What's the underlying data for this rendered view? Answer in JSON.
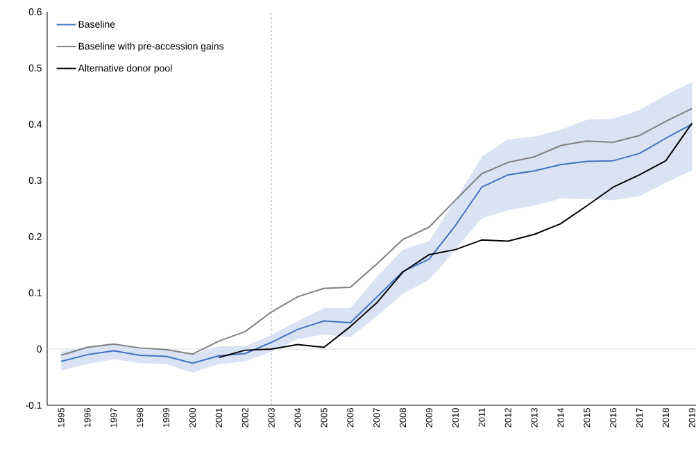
{
  "chart_data": {
    "type": "line",
    "categories": [
      "1995",
      "1996",
      "1997",
      "1998",
      "1999",
      "2000",
      "2001",
      "2002",
      "2003",
      "2004",
      "2005",
      "2006",
      "2007",
      "2008",
      "2009",
      "2010",
      "2011",
      "2012",
      "2013",
      "2014",
      "2015",
      "2016",
      "2017",
      "2018",
      "2019"
    ],
    "series": [
      {
        "name": "Baseline",
        "color": "#4472c4",
        "values": [
          -0.022,
          -0.01,
          -0.003,
          -0.011,
          -0.013,
          -0.025,
          -0.012,
          -0.008,
          0.012,
          0.035,
          0.05,
          0.047,
          0.092,
          0.138,
          0.16,
          0.22,
          0.288,
          0.31,
          0.317,
          0.328,
          0.334,
          0.335,
          0.348,
          0.375,
          0.4
        ],
        "lower": [
          -0.038,
          -0.027,
          -0.018,
          -0.025,
          -0.027,
          -0.042,
          -0.027,
          -0.022,
          -0.005,
          0.018,
          0.026,
          0.021,
          0.058,
          0.098,
          0.123,
          0.177,
          0.233,
          0.247,
          0.255,
          0.268,
          0.267,
          0.265,
          0.272,
          0.296,
          0.318
        ],
        "upper": [
          -0.005,
          0.005,
          0.01,
          0.002,
          -0.001,
          -0.01,
          0.005,
          0.005,
          0.025,
          0.05,
          0.073,
          0.073,
          0.128,
          0.177,
          0.192,
          0.265,
          0.342,
          0.373,
          0.378,
          0.39,
          0.408,
          0.41,
          0.425,
          0.452,
          0.475
        ]
      },
      {
        "name": "Baseline with pre-accession gains",
        "color": "#7f7f7f",
        "values": [
          -0.011,
          0.003,
          0.009,
          0.002,
          -0.001,
          -0.009,
          0.014,
          0.031,
          0.066,
          0.093,
          0.108,
          0.11,
          0.151,
          0.195,
          0.217,
          0.265,
          0.312,
          0.332,
          0.342,
          0.362,
          0.37,
          0.368,
          0.38,
          0.405,
          0.428
        ]
      },
      {
        "name": "Alternative donor pool",
        "color": "#000000",
        "values": [
          null,
          null,
          null,
          null,
          null,
          null,
          -0.015,
          -0.002,
          0.0,
          0.008,
          0.003,
          0.04,
          0.082,
          0.137,
          0.168,
          0.177,
          0.194,
          0.192,
          0.204,
          0.223,
          0.255,
          0.288,
          0.31,
          0.335,
          0.402
        ]
      }
    ],
    "ylim": [
      -0.1,
      0.6
    ],
    "yticks": [
      -0.1,
      {
        "value": 0,
        "label": "0"
      },
      0.1,
      0.2,
      0.3,
      0.4,
      0.5,
      0.6
    ],
    "ref_lines": [
      {
        "axis": "x",
        "value": "2003",
        "color": "#8497b0",
        "line_style": "dashed"
      },
      {
        "axis": "y",
        "value": 0,
        "color": "#d9d9d9",
        "line_style": "solid"
      }
    ],
    "grid": false,
    "legend": "top left",
    "line_style": "solid",
    "marker": "none"
  }
}
